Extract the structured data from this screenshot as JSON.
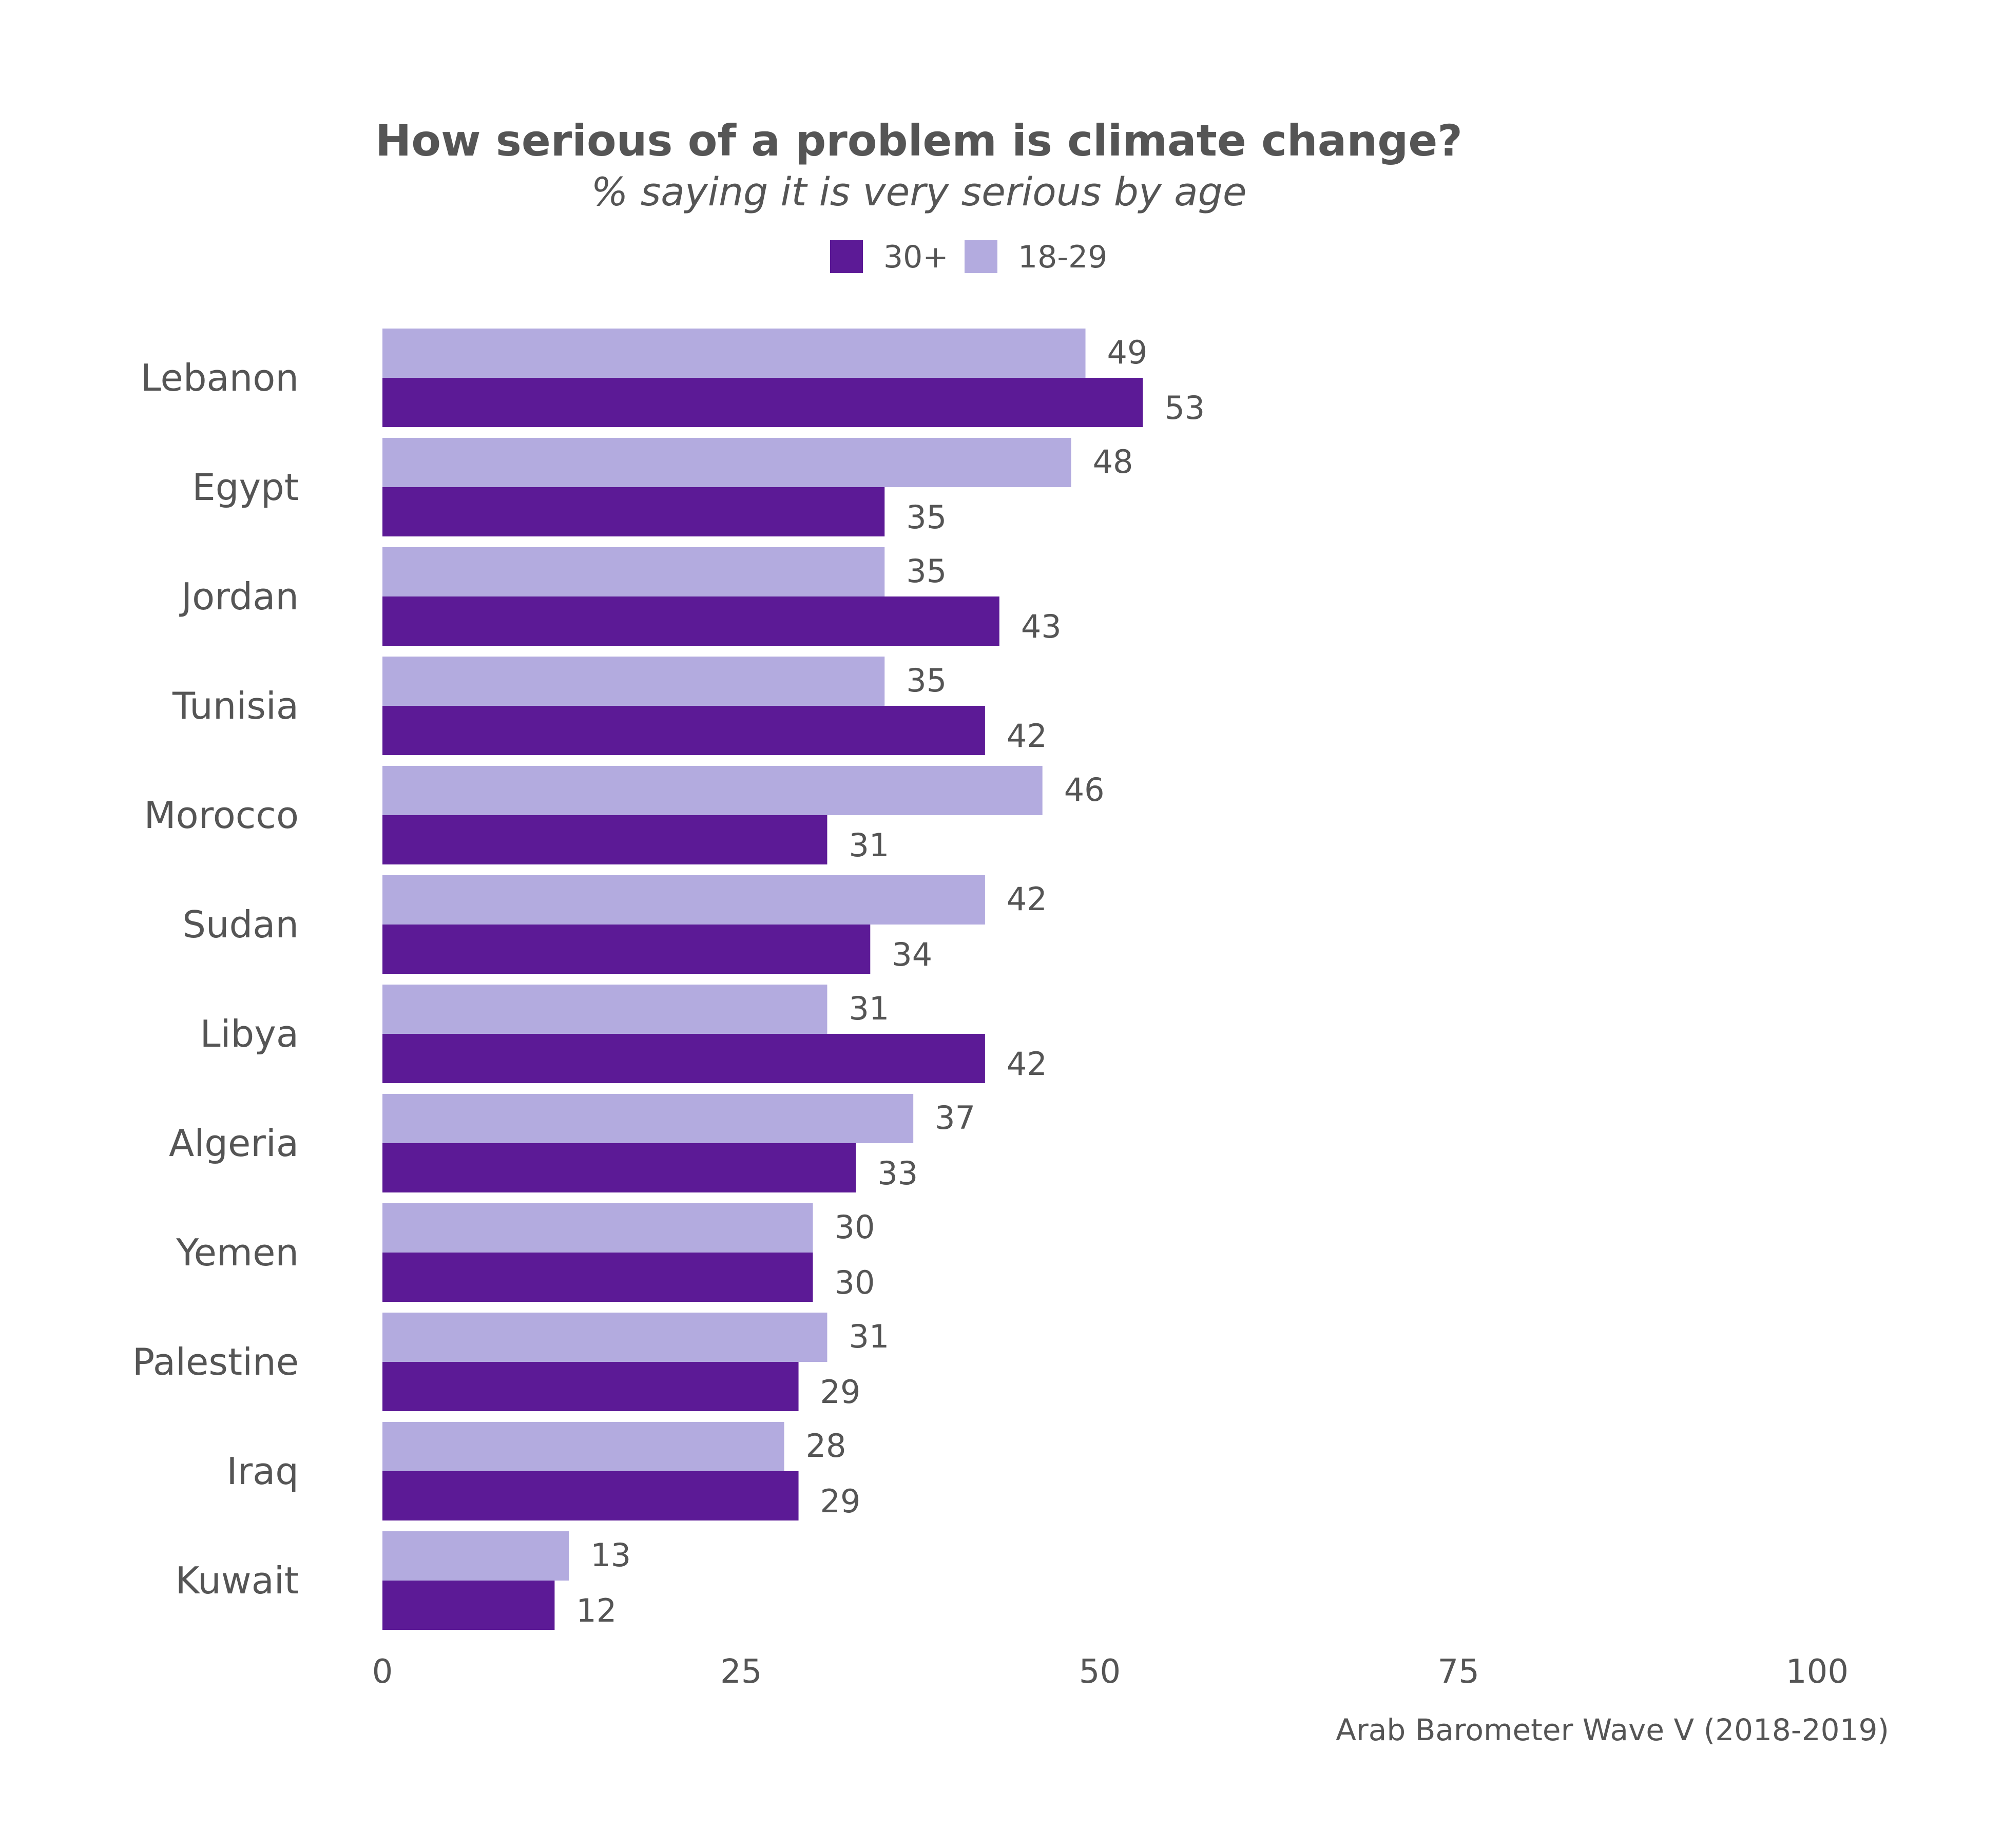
{
  "chart_data": {
    "type": "bar",
    "orientation": "horizontal",
    "title": "How serious of a problem is climate change?",
    "subtitle": "% saying it is very serious by age",
    "caption": "Arab Barometer Wave V (2018-2019)",
    "categories": [
      "Lebanon",
      "Egypt",
      "Jordan",
      "Tunisia",
      "Morocco",
      "Sudan",
      "Libya",
      "Algeria",
      "Yemen",
      "Palestine",
      "Iraq",
      "Kuwait"
    ],
    "series": [
      {
        "name": "18-29",
        "color": "#b3abdf",
        "values": [
          49,
          48,
          35,
          35,
          46,
          42,
          31,
          37,
          30,
          31,
          28,
          13
        ]
      },
      {
        "name": "30+",
        "color": "#5c1a96",
        "values": [
          53,
          35,
          43,
          42,
          31,
          34,
          42,
          33,
          30,
          29,
          29,
          12
        ]
      }
    ],
    "legend": {
      "placement": "top-center",
      "order": [
        "30+",
        "18-29"
      ]
    },
    "xlim": [
      0,
      100
    ],
    "xticks": [
      0,
      25,
      50,
      75,
      100
    ],
    "grid": false
  }
}
